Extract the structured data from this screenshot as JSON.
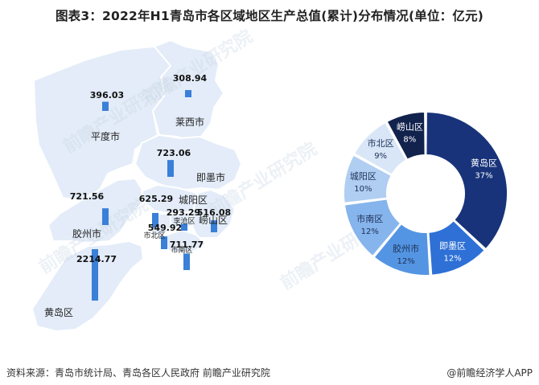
{
  "title": "图表3：2022年H1青岛市各区域地区生产总值(累计)分布情况(单位：亿元)",
  "footer": {
    "source": "资料来源：青岛市统计局、青岛各区人民政府 前瞻产业研究院",
    "brand": "@前瞻经济学人APP"
  },
  "watermark": "前瞻产业研究院",
  "colors": {
    "map_fill": "#e3ecf8",
    "map_stroke": "#ffffff",
    "bar": "#3a7fd8"
  },
  "chart_data": [
    {
      "type": "bar",
      "subtype": "map-embedded",
      "categories": [
        "平度市",
        "莱西市",
        "即墨市",
        "胶州市",
        "城阳区",
        "崂山区",
        "市北区",
        "李沧区",
        "市南区",
        "黄岛区"
      ],
      "values": [
        396.03,
        308.94,
        723.06,
        721.56,
        625.29,
        516.08,
        549.92,
        293.29,
        711.77,
        2214.77
      ],
      "region_labels": [
        "平度市",
        "莱西市",
        "即墨市",
        "胶州市",
        "城阳区",
        "崂山区",
        "市北区",
        "李沧区",
        "市南区",
        "黄岛区"
      ],
      "unit": "亿元"
    },
    {
      "type": "pie",
      "donut": true,
      "slices": [
        {
          "label": "黄岛区",
          "value": 37,
          "color": "#18337a",
          "text_color": "#ffffff"
        },
        {
          "label": "即墨区",
          "value": 12,
          "color": "#2e70d6",
          "text_color": "#ffffff"
        },
        {
          "label": "胶州市",
          "value": 12,
          "color": "#5495e3",
          "text_color": "#1d2f55"
        },
        {
          "label": "市南区",
          "value": 12,
          "color": "#86b4ec",
          "text_color": "#1d2f55"
        },
        {
          "label": "城阳区",
          "value": 10,
          "color": "#b0cef2",
          "text_color": "#1d2f55"
        },
        {
          "label": "市北区",
          "value": 9,
          "color": "#d8e6f8",
          "text_color": "#1d2f55"
        },
        {
          "label": "崂山区",
          "value": 8,
          "color": "#11224d",
          "text_color": "#ffffff"
        }
      ],
      "value_suffix": "%"
    }
  ]
}
